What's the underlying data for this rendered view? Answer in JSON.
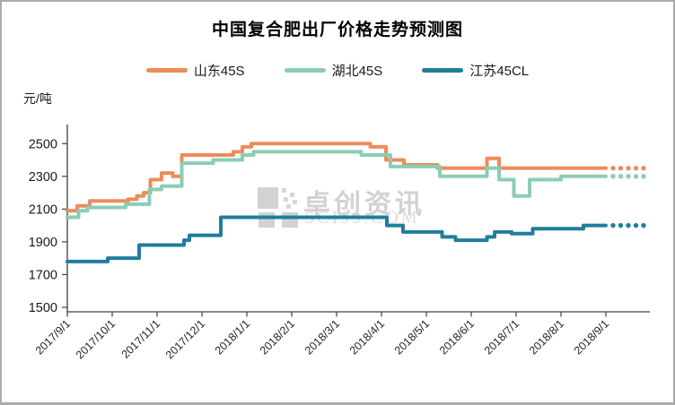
{
  "window": {
    "title": "中国复合肥出厂价格走势预测图"
  },
  "unit_label": "元/吨",
  "watermark": {
    "logo": "pixel-squares-logo",
    "text": "卓创资讯",
    "subtext": "SCI99.COM"
  },
  "chart_data": {
    "type": "line",
    "subtype": "step",
    "title": "中国复合肥出厂价格走势预测图",
    "xlabel": "",
    "ylabel": "元/吨",
    "ylim": [
      1500,
      2500
    ],
    "yticks": [
      1500,
      1700,
      1900,
      2100,
      2300,
      2500
    ],
    "x_tick_labels": [
      "2017/9/1",
      "2017/10/1",
      "2017/11/1",
      "2017/12/1",
      "2018/1/1",
      "2018/2/1",
      "2018/3/1",
      "2018/4/1",
      "2018/5/1",
      "2018/6/1",
      "2018/7/1",
      "2018/8/1",
      "2018/9/1"
    ],
    "grid": false,
    "legend_position": "top",
    "solid_end_month": 12,
    "forecast_dots": {
      "start_month": 12.16,
      "step_month": 0.17,
      "count": 5,
      "meaning": "dotted forecast after 2018/9/1"
    },
    "series": [
      {
        "name": "山东45S",
        "color": "#ED8C5A",
        "breakpoints_month_value": [
          [
            0,
            2090
          ],
          [
            0.22,
            2120
          ],
          [
            0.5,
            2150
          ],
          [
            1.35,
            2160
          ],
          [
            1.55,
            2180
          ],
          [
            1.7,
            2200
          ],
          [
            1.85,
            2280
          ],
          [
            2.1,
            2320
          ],
          [
            2.35,
            2300
          ],
          [
            2.55,
            2430
          ],
          [
            3.7,
            2450
          ],
          [
            3.9,
            2480
          ],
          [
            4.1,
            2500
          ],
          [
            6.75,
            2480
          ],
          [
            7.1,
            2400
          ],
          [
            7.5,
            2370
          ],
          [
            8.25,
            2350
          ],
          [
            9.35,
            2410
          ],
          [
            9.62,
            2350
          ]
        ],
        "forecast_value": 2350
      },
      {
        "name": "湖北45S",
        "color": "#8BCDB5",
        "breakpoints_month_value": [
          [
            0,
            2050
          ],
          [
            0.25,
            2090
          ],
          [
            0.45,
            2110
          ],
          [
            1.3,
            2130
          ],
          [
            1.83,
            2220
          ],
          [
            2.1,
            2240
          ],
          [
            2.55,
            2380
          ],
          [
            3.25,
            2400
          ],
          [
            3.9,
            2430
          ],
          [
            4.15,
            2450
          ],
          [
            6.55,
            2430
          ],
          [
            7.2,
            2360
          ],
          [
            8.3,
            2300
          ],
          [
            9.35,
            2350
          ],
          [
            9.62,
            2280
          ],
          [
            9.95,
            2180
          ],
          [
            10.3,
            2280
          ],
          [
            11.0,
            2300
          ]
        ],
        "forecast_value": 2300
      },
      {
        "name": "江苏45CL",
        "color": "#217D9B",
        "breakpoints_month_value": [
          [
            0,
            1780
          ],
          [
            0.9,
            1800
          ],
          [
            1.6,
            1880
          ],
          [
            2.6,
            1910
          ],
          [
            2.72,
            1940
          ],
          [
            3.42,
            2050
          ],
          [
            7.12,
            2000
          ],
          [
            7.48,
            1960
          ],
          [
            8.35,
            1930
          ],
          [
            8.65,
            1910
          ],
          [
            9.35,
            1930
          ],
          [
            9.52,
            1960
          ],
          [
            9.9,
            1950
          ],
          [
            10.37,
            1980
          ],
          [
            11.5,
            2000
          ]
        ],
        "forecast_value": 2000
      }
    ]
  }
}
